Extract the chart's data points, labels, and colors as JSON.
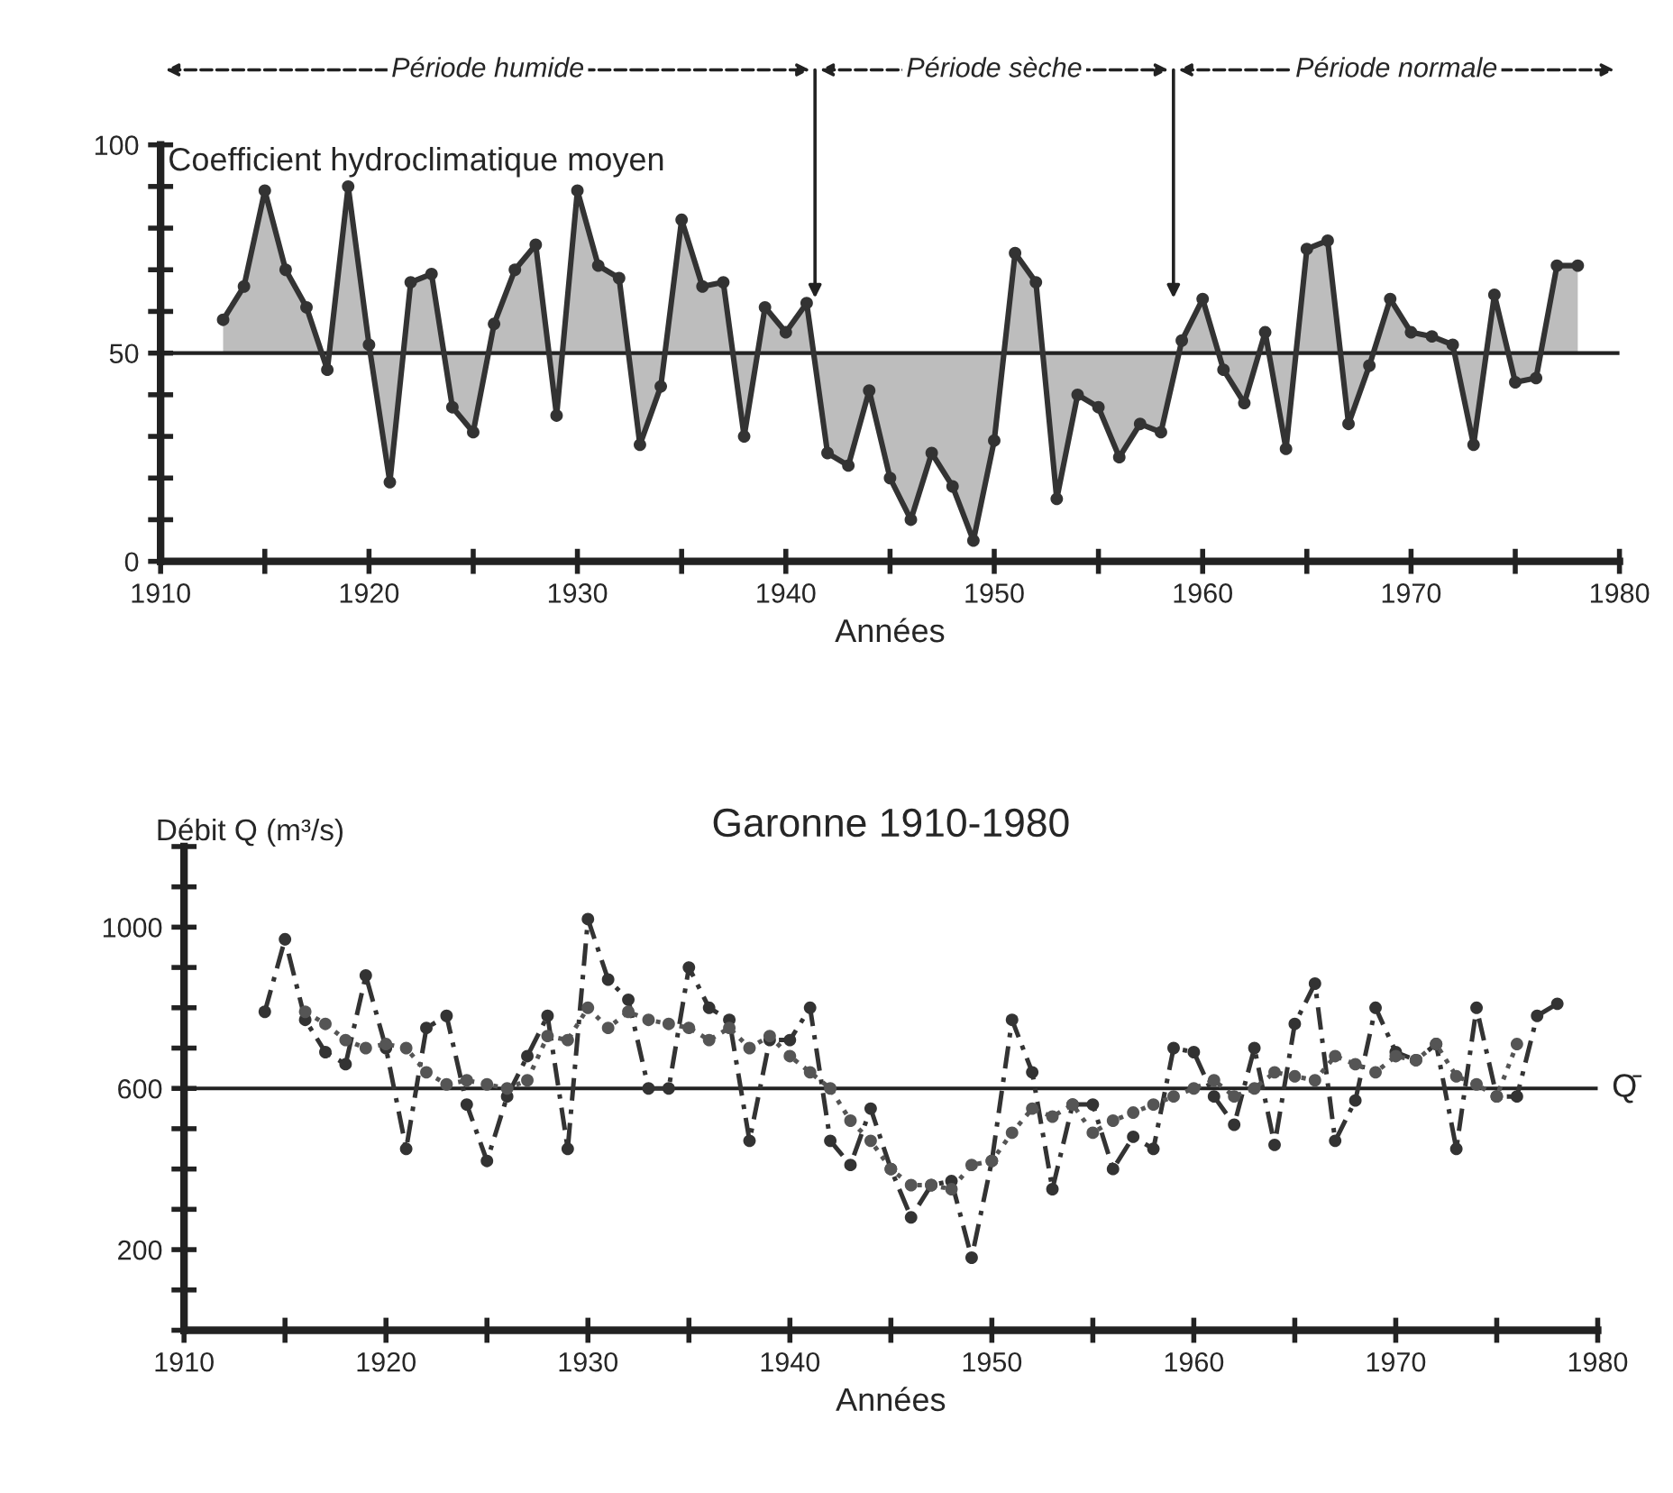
{
  "chart_data": [
    {
      "type": "area",
      "ylabel": "Coefficient hydroclimatique moyen",
      "xlabel": "Années",
      "x": [
        1913,
        1914,
        1915,
        1916,
        1917,
        1918,
        1919,
        1920,
        1921,
        1922,
        1923,
        1924,
        1925,
        1926,
        1927,
        1928,
        1929,
        1930,
        1931,
        1932,
        1933,
        1934,
        1935,
        1936,
        1937,
        1938,
        1939,
        1940,
        1941,
        1942,
        1943,
        1944,
        1945,
        1946,
        1947,
        1948,
        1949,
        1950,
        1951,
        1952,
        1953,
        1954,
        1955,
        1956,
        1957,
        1958,
        1959,
        1960,
        1961,
        1962,
        1963,
        1964,
        1965,
        1966,
        1967,
        1968,
        1969,
        1970,
        1971,
        1972,
        1973,
        1974,
        1975,
        1976,
        1977,
        1978
      ],
      "series": [
        {
          "color": "#333333",
          "values": [
            58,
            66,
            89,
            70,
            61,
            46,
            90,
            52,
            19,
            67,
            69,
            37,
            31,
            57,
            70,
            76,
            35,
            89,
            71,
            68,
            28,
            42,
            82,
            66,
            67,
            30,
            61,
            55,
            62,
            26,
            23,
            41,
            20,
            10,
            26,
            18,
            5,
            29,
            74,
            67,
            15,
            40,
            37,
            25,
            33,
            31,
            53,
            63,
            46,
            38,
            55,
            27,
            75,
            77,
            33,
            47,
            63,
            55,
            54,
            52,
            28,
            64,
            43,
            44,
            71,
            71
          ]
        }
      ],
      "xlim": [
        1910,
        1980
      ],
      "xticks": [
        1910,
        {
          "value": 1915,
          "label": null
        },
        1920,
        {
          "value": 1925,
          "label": null
        },
        1930,
        {
          "value": 1935,
          "label": null
        },
        1940,
        {
          "value": 1945,
          "label": null
        },
        1950,
        {
          "value": 1955,
          "label": null
        },
        1960,
        {
          "value": 1965,
          "label": null
        },
        1970,
        {
          "value": 1975,
          "label": null
        },
        1980
      ],
      "ylim": [
        0,
        100
      ],
      "yticks": [
        0,
        {
          "value": 10,
          "label": null
        },
        {
          "value": 20,
          "label": null
        },
        {
          "value": 30,
          "label": null
        },
        {
          "value": 40,
          "label": null
        },
        50,
        {
          "value": 60,
          "label": null
        },
        {
          "value": 70,
          "label": null
        },
        {
          "value": 80,
          "label": null
        },
        {
          "value": 90,
          "label": null
        },
        100
      ],
      "ref_lines": [
        {
          "axis": "y",
          "value": 50
        },
        {
          "axis": "x",
          "value": 1941.4
        },
        {
          "axis": "x",
          "value": 1958.6
        }
      ],
      "annotations": [
        "Période humide",
        "Période sèche",
        "Période normale"
      ],
      "marker": "circle",
      "line_style": "solid",
      "grid": false,
      "legend": false
    },
    {
      "type": "line",
      "title": "Garonne 1910-1980",
      "ylabel": "Débit Q (m³/s)",
      "xlabel": "Années",
      "series": [
        {
          "color": "#333333",
          "line_style": "dashed",
          "x": [
            1914,
            1915,
            1916,
            1917,
            1918,
            1919,
            1920,
            1921,
            1922,
            1923,
            1924,
            1925,
            1926,
            1927,
            1928,
            1929,
            1930,
            1931,
            1932,
            1933,
            1934,
            1935,
            1936,
            1937,
            1938,
            1939,
            1940,
            1941,
            1942,
            1943,
            1944,
            1945,
            1946,
            1947,
            1948,
            1949,
            1950,
            1951,
            1952,
            1953,
            1954,
            1955,
            1956,
            1957,
            1958,
            1959,
            1960,
            1961,
            1962,
            1963,
            1964,
            1965,
            1966,
            1967,
            1968,
            1969,
            1970,
            1971,
            1972,
            1973,
            1974,
            1975,
            1976,
            1977,
            1978
          ],
          "values": [
            790,
            970,
            770,
            690,
            660,
            880,
            700,
            450,
            750,
            780,
            560,
            420,
            580,
            680,
            780,
            450,
            1020,
            870,
            820,
            600,
            600,
            900,
            800,
            770,
            470,
            720,
            720,
            800,
            470,
            410,
            550,
            400,
            280,
            360,
            370,
            180,
            420,
            770,
            640,
            350,
            560,
            560,
            400,
            480,
            450,
            700,
            690,
            580,
            510,
            700,
            460,
            760,
            860,
            470,
            570,
            800,
            690,
            670,
            710,
            450,
            800,
            580,
            580,
            780,
            810
          ]
        },
        {
          "color": "#555555",
          "line_style": "dotted",
          "x": [
            1916,
            1917,
            1918,
            1919,
            1920,
            1921,
            1922,
            1923,
            1924,
            1925,
            1926,
            1927,
            1928,
            1929,
            1930,
            1931,
            1932,
            1933,
            1934,
            1935,
            1936,
            1937,
            1938,
            1939,
            1940,
            1941,
            1942,
            1943,
            1944,
            1945,
            1946,
            1947,
            1948,
            1949,
            1950,
            1951,
            1952,
            1953,
            1954,
            1955,
            1956,
            1957,
            1958,
            1959,
            1960,
            1961,
            1962,
            1963,
            1964,
            1965,
            1966,
            1967,
            1968,
            1969,
            1970,
            1971,
            1972,
            1973,
            1974,
            1975,
            1976
          ],
          "values": [
            790,
            760,
            720,
            700,
            710,
            700,
            640,
            610,
            620,
            610,
            600,
            620,
            730,
            720,
            800,
            750,
            790,
            770,
            760,
            750,
            720,
            750,
            700,
            730,
            680,
            640,
            600,
            520,
            470,
            400,
            360,
            360,
            350,
            410,
            420,
            490,
            550,
            530,
            560,
            490,
            520,
            540,
            560,
            580,
            600,
            620,
            580,
            600,
            640,
            630,
            620,
            680,
            660,
            640,
            680,
            670,
            710,
            630,
            610,
            580,
            710
          ]
        }
      ],
      "xlim": [
        1910,
        1980
      ],
      "xticks": [
        1910,
        {
          "value": 1915,
          "label": null
        },
        1920,
        {
          "value": 1925,
          "label": null
        },
        1930,
        {
          "value": 1935,
          "label": null
        },
        1940,
        {
          "value": 1945,
          "label": null
        },
        1950,
        {
          "value": 1955,
          "label": null
        },
        1960,
        {
          "value": 1965,
          "label": null
        },
        1970,
        {
          "value": 1975,
          "label": null
        },
        1980
      ],
      "ylim": [
        0,
        1200
      ],
      "yticks": [
        {
          "value": 0,
          "label": null
        },
        {
          "value": 100,
          "label": null
        },
        200,
        {
          "value": 300,
          "label": null
        },
        {
          "value": 400,
          "label": null
        },
        {
          "value": 500,
          "label": null
        },
        600,
        {
          "value": 700,
          "label": null
        },
        {
          "value": 800,
          "label": null
        },
        {
          "value": 900,
          "label": null
        },
        1000,
        {
          "value": 1100,
          "label": null
        },
        {
          "value": 1200,
          "label": null
        }
      ],
      "ref_lines": [
        {
          "axis": "y",
          "value": 600,
          "label": "Q̄"
        }
      ],
      "marker": "circle",
      "grid": false,
      "legend": false
    }
  ]
}
